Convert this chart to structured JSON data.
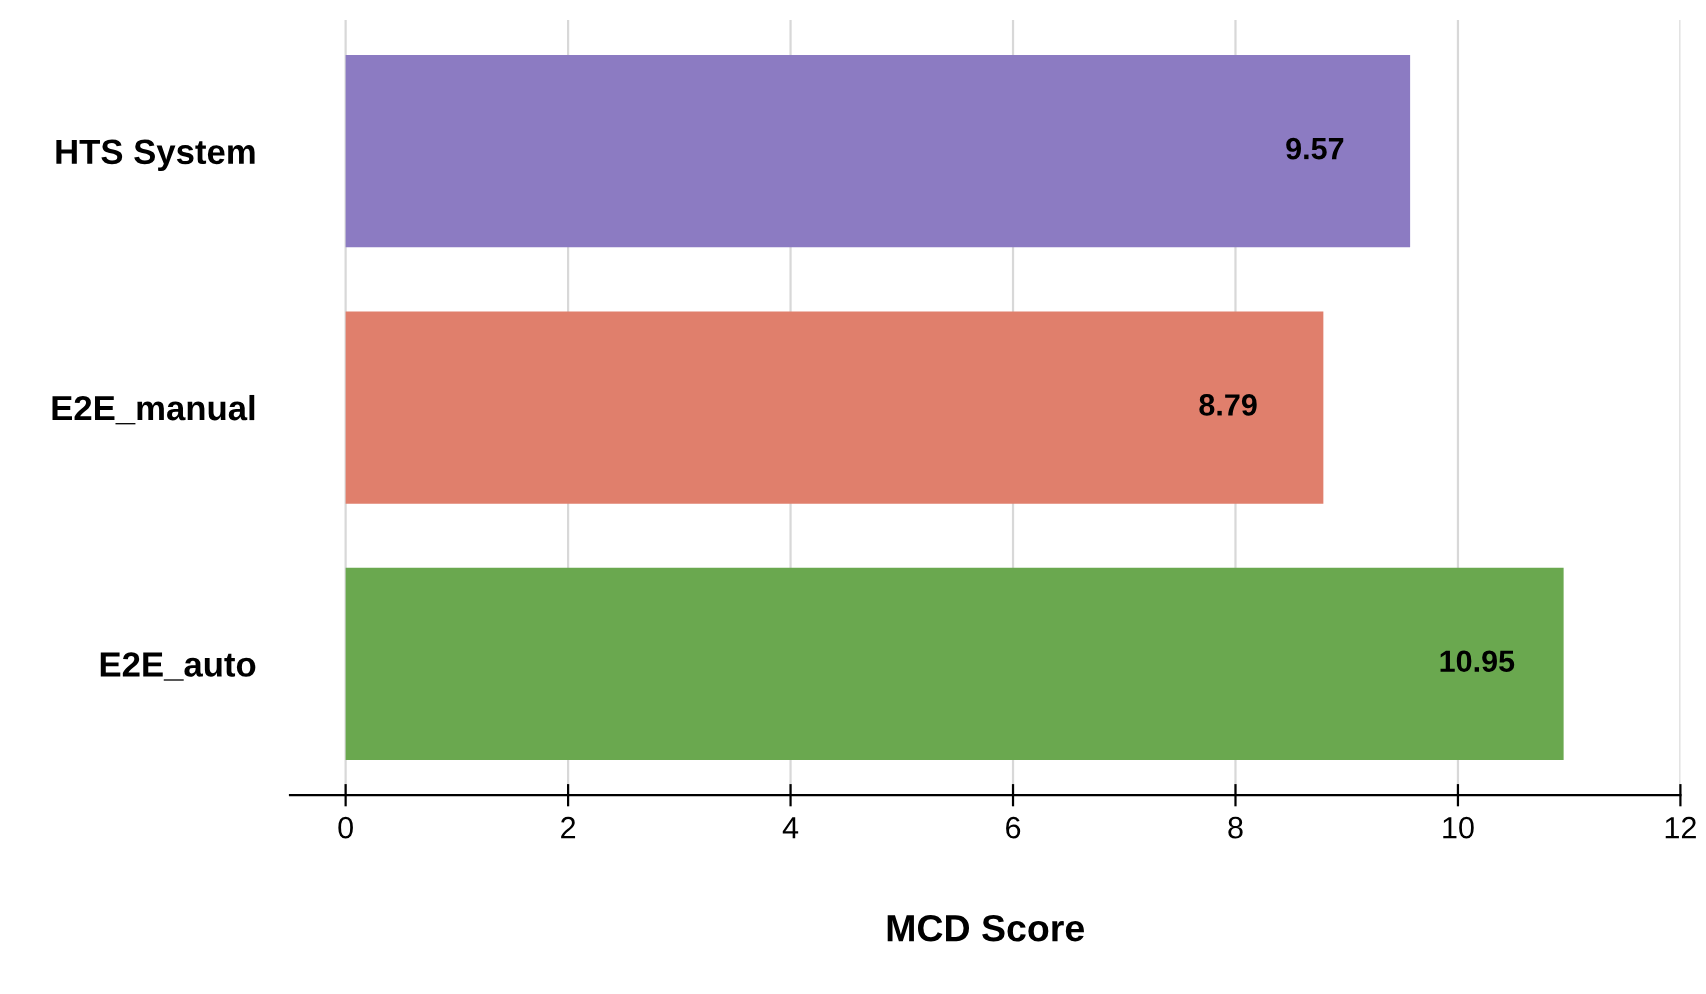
{
  "chart_data": {
    "type": "bar",
    "orientation": "horizontal",
    "xlabel": "MCD Score",
    "categories": [
      "HTS System",
      "E2E_manual",
      "E2E_auto"
    ],
    "values": [
      9.57,
      8.79,
      10.95
    ],
    "colors": [
      "#8c7bc2",
      "#e07f6c",
      "#6aa84f"
    ],
    "xlim": [
      -0.5,
      12
    ],
    "xticks": [
      0,
      2,
      4,
      6,
      8,
      10,
      12
    ],
    "grid": "x",
    "data_labels": true,
    "legend": false
  }
}
